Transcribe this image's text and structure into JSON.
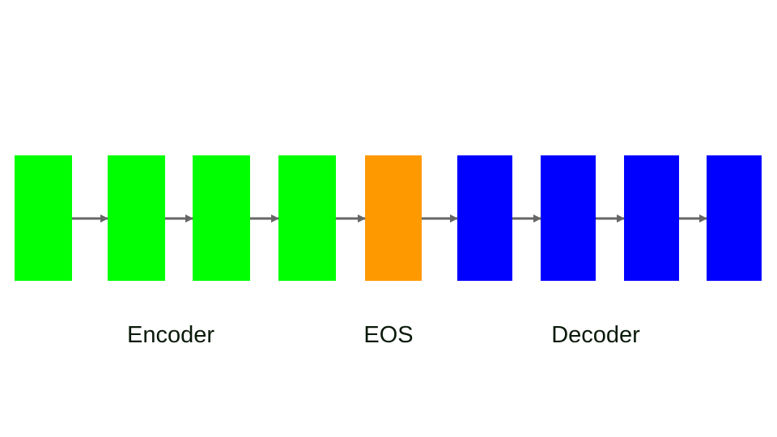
{
  "labels": {
    "encoder": "Encoder",
    "eos": "EOS",
    "decoder": "Decoder"
  },
  "blocks": [
    {
      "role": "encoder",
      "color": "#00ff00"
    },
    {
      "role": "encoder",
      "color": "#00ff00"
    },
    {
      "role": "encoder",
      "color": "#00ff00"
    },
    {
      "role": "encoder",
      "color": "#00ff00"
    },
    {
      "role": "eos",
      "color": "#ff9900"
    },
    {
      "role": "decoder",
      "color": "#0000ff"
    },
    {
      "role": "decoder",
      "color": "#0000ff"
    },
    {
      "role": "decoder",
      "color": "#0000ff"
    },
    {
      "role": "decoder",
      "color": "#0000ff"
    }
  ],
  "arrow_color": "#666666"
}
